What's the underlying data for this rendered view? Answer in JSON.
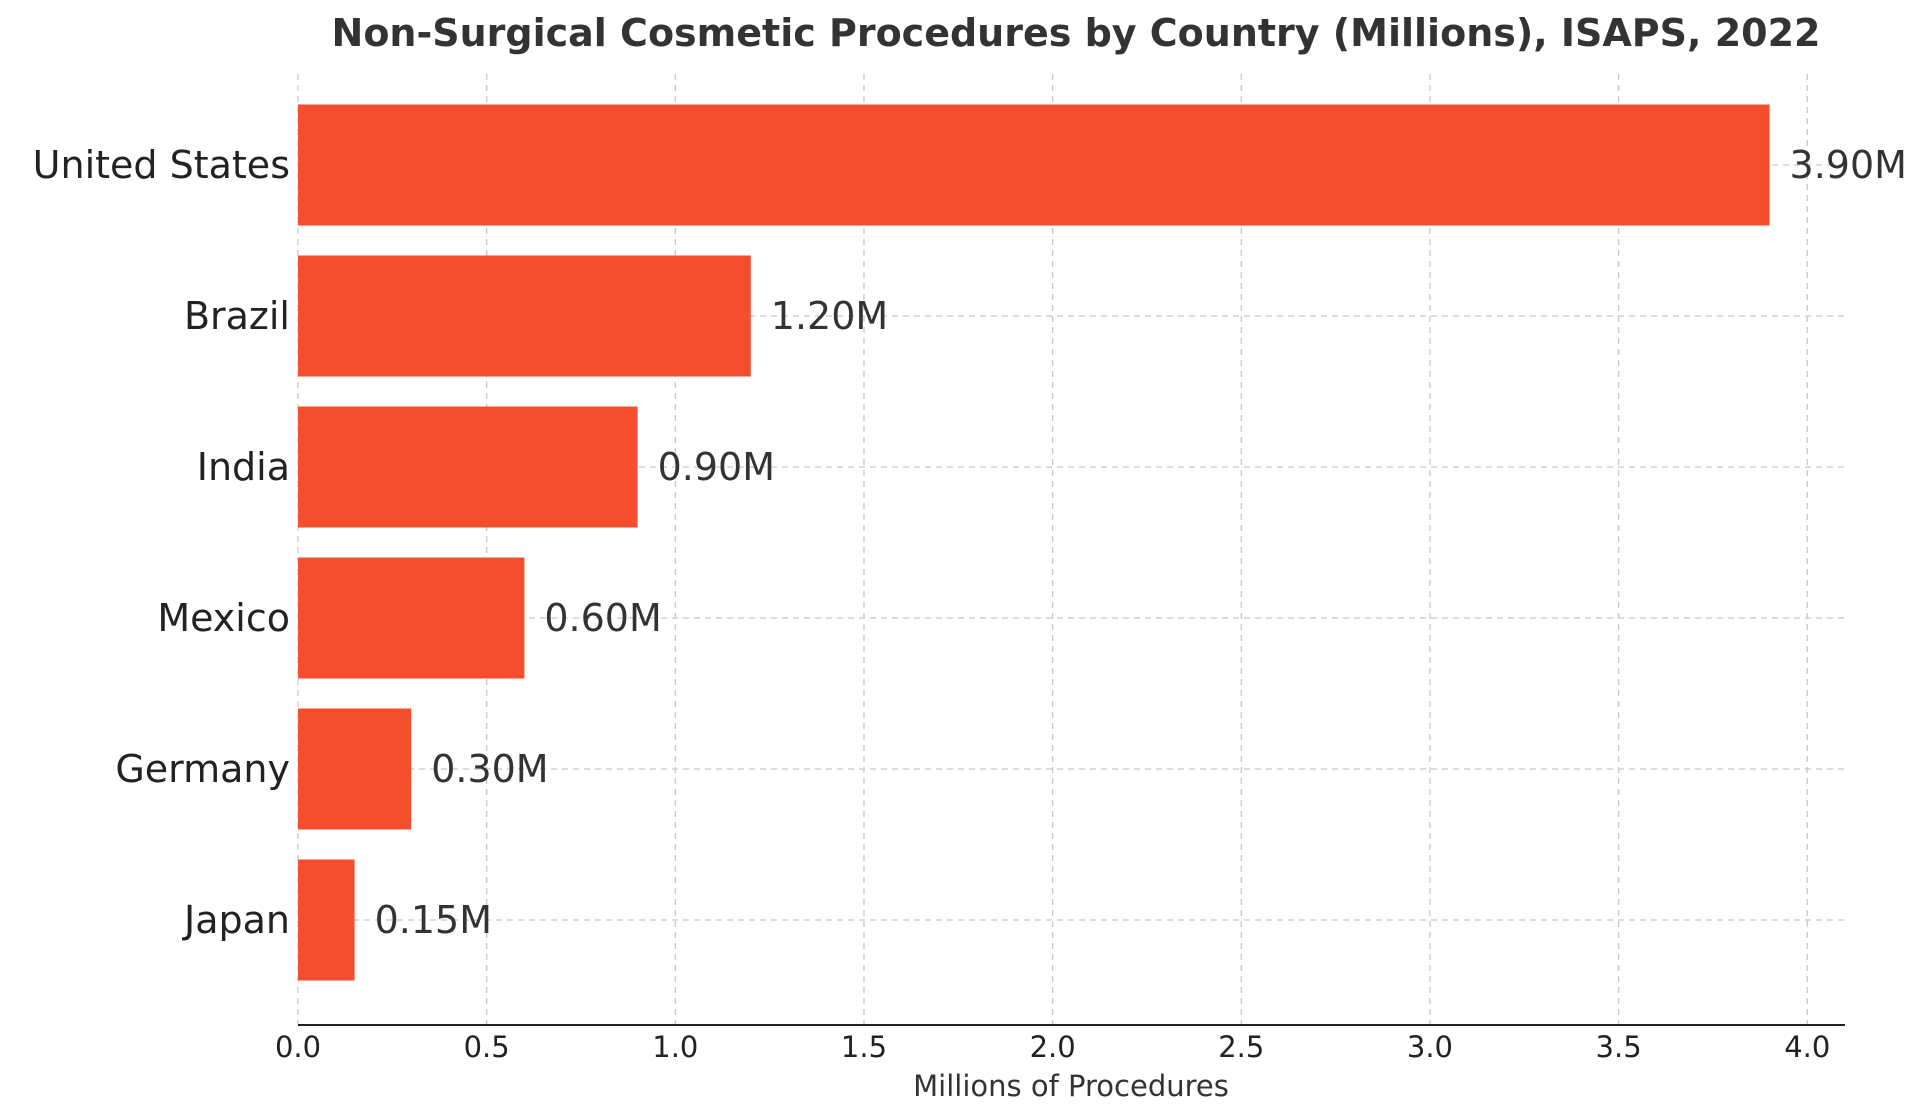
{
  "chart_data": {
    "type": "bar",
    "orientation": "horizontal",
    "title": "Non-Surgical Cosmetic Procedures by Country (Millions), ISAPS, 2022",
    "xlabel": "Millions of Procedures",
    "ylabel": "",
    "categories": [
      "United States",
      "Brazil",
      "India",
      "Mexico",
      "Germany",
      "Japan"
    ],
    "values": [
      3.9,
      1.2,
      0.9,
      0.6,
      0.3,
      0.15
    ],
    "data_labels": [
      "3.90M",
      "1.20M",
      "0.90M",
      "0.60M",
      "0.30M",
      "0.15M"
    ],
    "xlim": [
      0,
      4.1
    ],
    "xticks": [
      0.0,
      0.5,
      1.0,
      1.5,
      2.0,
      2.5,
      3.0,
      3.5,
      4.0
    ],
    "xtick_labels": [
      "0.0",
      "0.5",
      "1.0",
      "1.5",
      "2.0",
      "2.5",
      "3.0",
      "3.5",
      "4.0"
    ],
    "grid": true,
    "bar_color": "#f44e2f"
  }
}
